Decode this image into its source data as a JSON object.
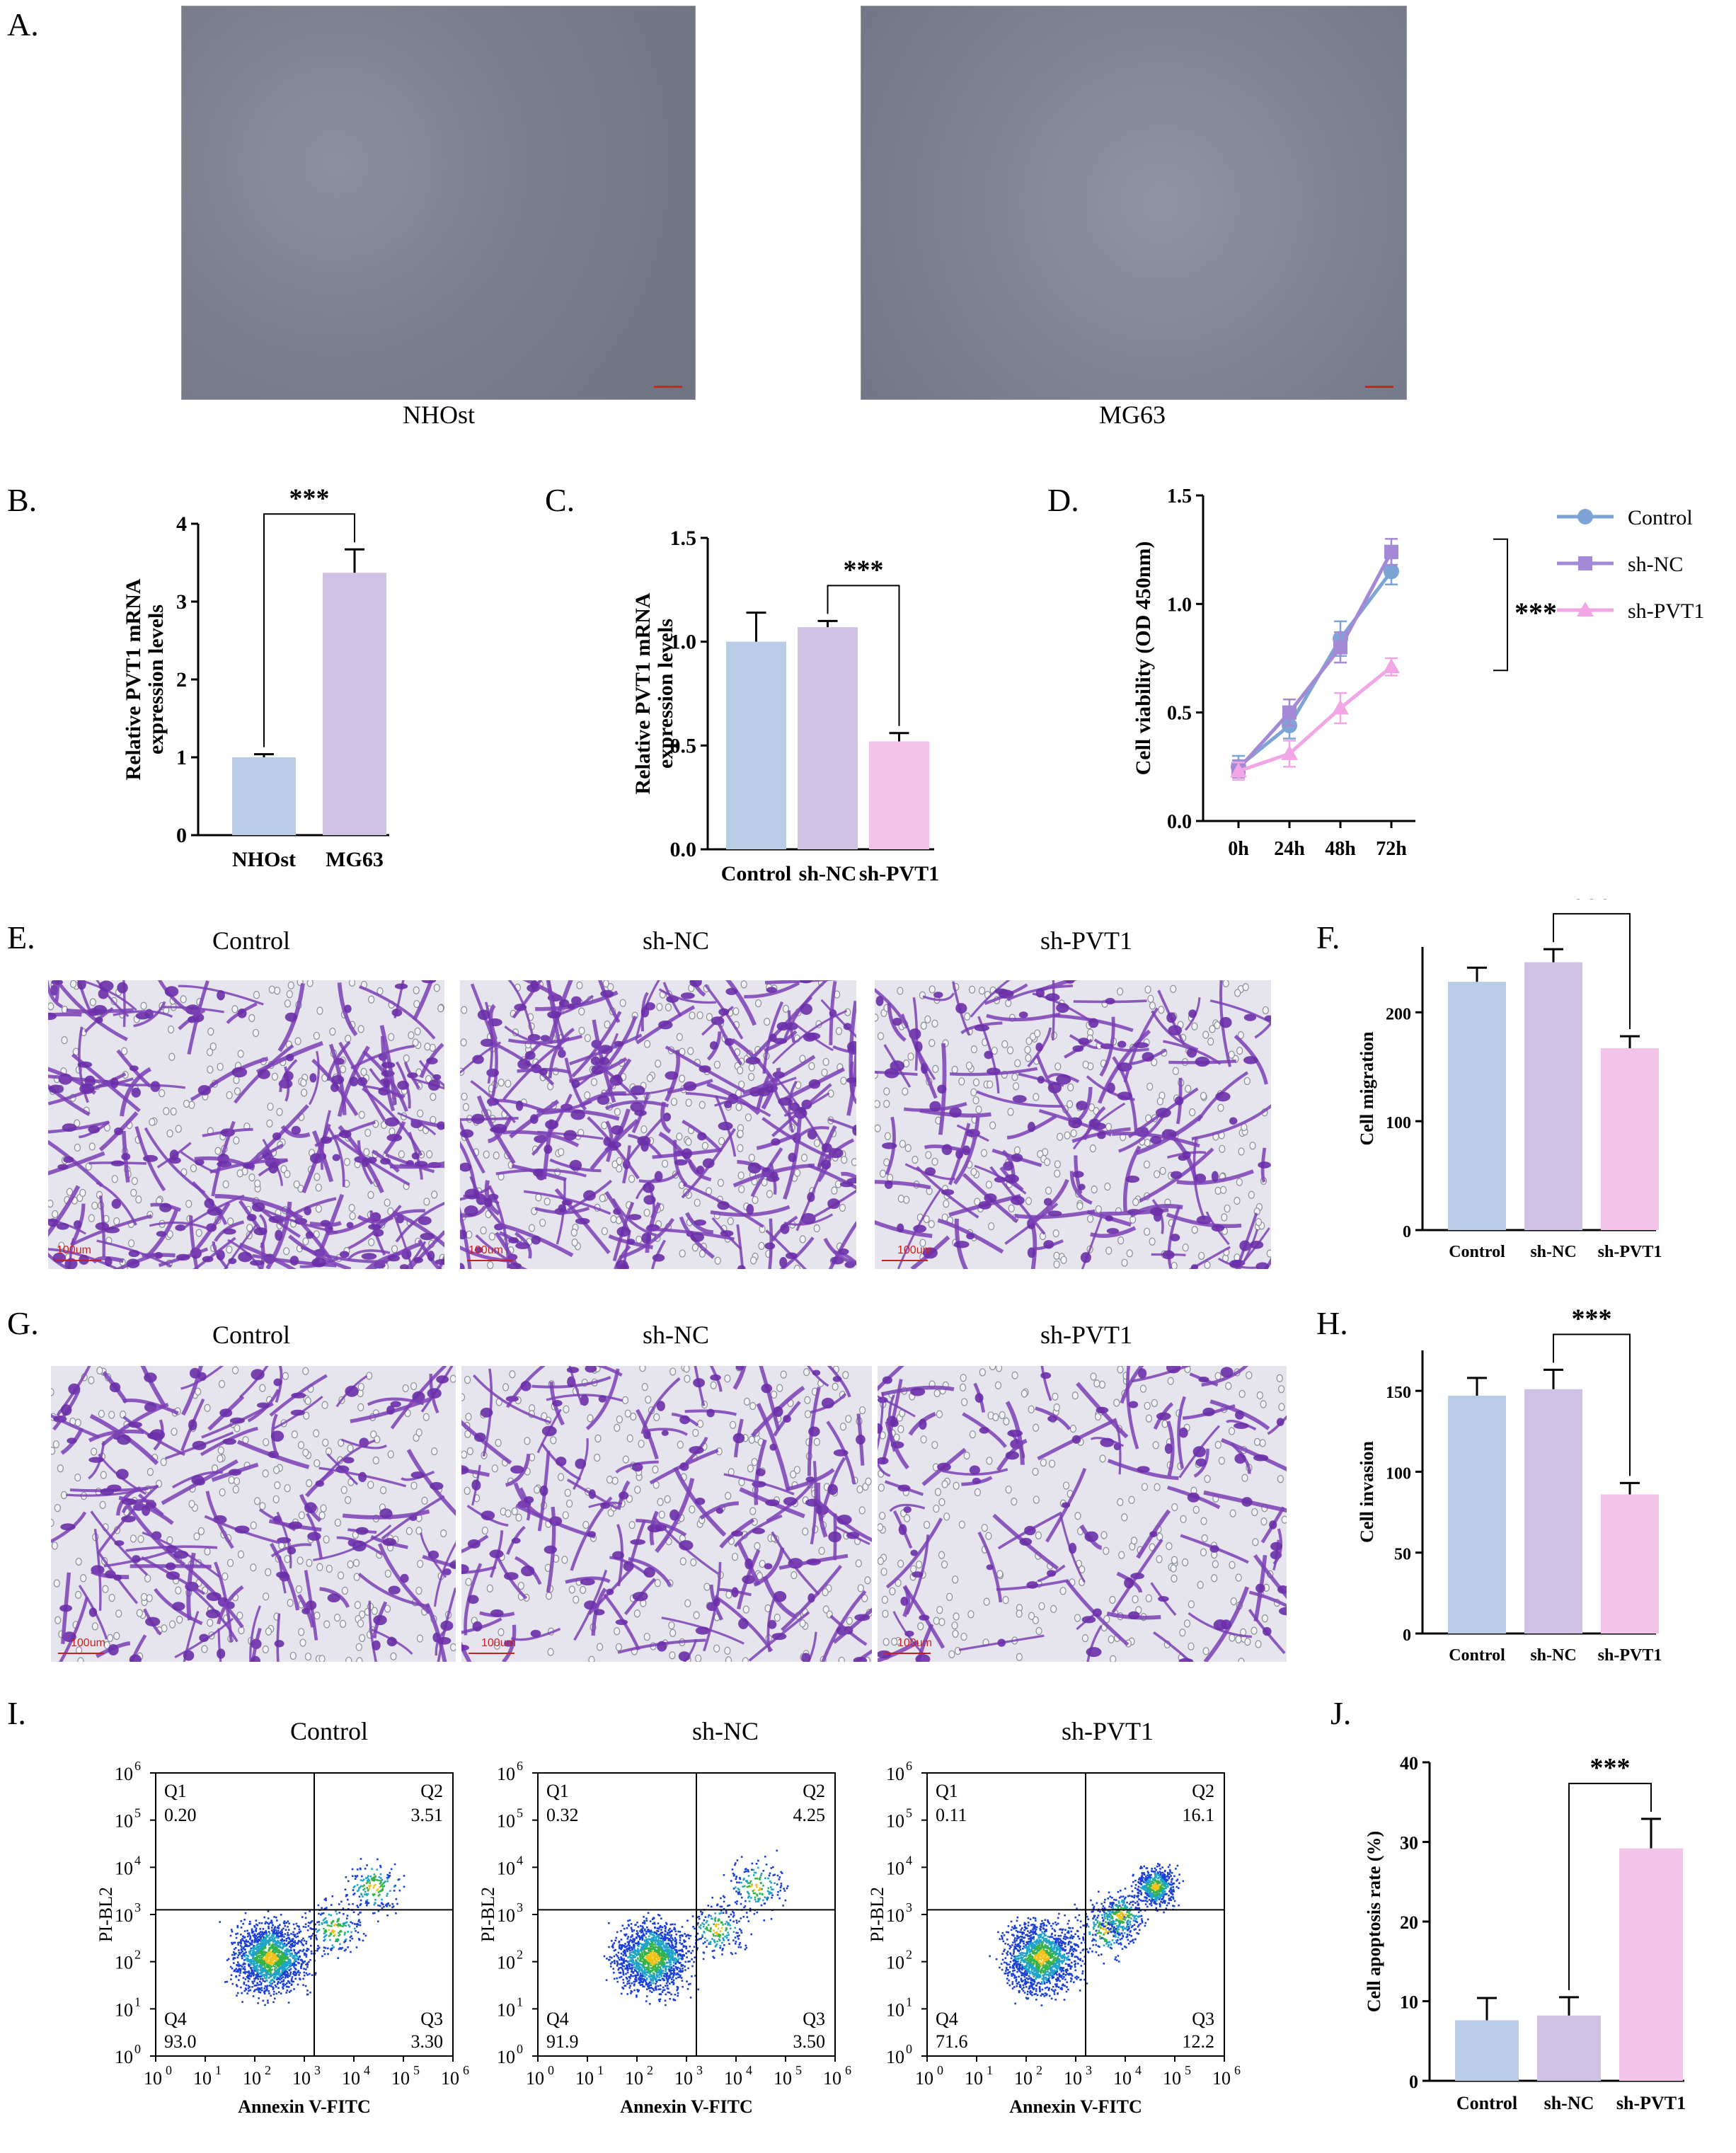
{
  "panels": {
    "A": {
      "letter": "A.",
      "labels": [
        "NHOst",
        "MG63"
      ]
    },
    "B": {
      "letter": "B."
    },
    "C": {
      "letter": "C."
    },
    "D": {
      "letter": "D."
    },
    "E": {
      "letter": "E.",
      "titles": [
        "Control",
        "sh-NC",
        "sh-PVT1"
      ],
      "scalebar": "100um"
    },
    "F": {
      "letter": "F."
    },
    "G": {
      "letter": "G.",
      "titles": [
        "Control",
        "sh-NC",
        "sh-PVT1"
      ],
      "scalebar": "100um"
    },
    "H": {
      "letter": "H."
    },
    "I": {
      "letter": "I.",
      "titles": [
        "Control",
        "sh-NC",
        "sh-PVT1"
      ],
      "xlabel": "Annexin V-FITC",
      "ylabel": "PI-BL2",
      "quadrant_names": [
        "Q1",
        "Q2",
        "Q3",
        "Q4"
      ],
      "plots": [
        {
          "q1": "0.20",
          "q2": "3.51",
          "q3": "3.30",
          "q4": "93.0"
        },
        {
          "q1": "0.32",
          "q2": "4.25",
          "q3": "3.50",
          "q4": "91.9"
        },
        {
          "q1": "0.11",
          "q2": "16.1",
          "q3": "12.2",
          "q4": "71.6"
        }
      ]
    },
    "J": {
      "letter": "J."
    }
  },
  "chart_data": [
    {
      "id": "B",
      "type": "bar",
      "categories": [
        "NHOst",
        "MG63"
      ],
      "values": [
        1.0,
        3.37
      ],
      "errors": [
        0.04,
        0.3
      ],
      "ylabel": "Relative PVT1 mRNA expression levels",
      "ylim": [
        0,
        4
      ],
      "yticks": [
        0,
        1,
        2,
        3,
        4
      ],
      "colors": [
        "#b8cce6",
        "#cfc2e4"
      ],
      "significance": "***"
    },
    {
      "id": "C",
      "type": "bar",
      "categories": [
        "Control",
        "sh-NC",
        "sh-PVT1"
      ],
      "values": [
        1.0,
        1.07,
        0.52
      ],
      "errors": [
        0.14,
        0.03,
        0.04
      ],
      "ylabel": "Relative PVT1 mRNA expression levels",
      "ylim": [
        0,
        1.5
      ],
      "yticks": [
        0.0,
        0.5,
        1.0,
        1.5
      ],
      "colors": [
        "#b8cce6",
        "#cfc2e4",
        "#f3c4ea"
      ],
      "significance": "***"
    },
    {
      "id": "D",
      "type": "line",
      "x": [
        "0h",
        "24h",
        "48h",
        "72h"
      ],
      "ylabel": "Cell viability (OD 450nm)",
      "ylim": [
        0,
        1.5
      ],
      "yticks": [
        0.0,
        0.5,
        1.0,
        1.5
      ],
      "series": [
        {
          "name": "Control",
          "values": [
            0.25,
            0.44,
            0.84,
            1.15
          ],
          "errors": [
            0.05,
            0.06,
            0.08,
            0.06
          ],
          "color": "#7ea4d6",
          "marker": "circle"
        },
        {
          "name": "sh-NC",
          "values": [
            0.24,
            0.5,
            0.8,
            1.24
          ],
          "errors": [
            0.04,
            0.06,
            0.07,
            0.06
          ],
          "color": "#a48ad6",
          "marker": "square"
        },
        {
          "name": "sh-PVT1",
          "values": [
            0.23,
            0.31,
            0.52,
            0.71
          ],
          "errors": [
            0.04,
            0.06,
            0.07,
            0.04
          ],
          "color": "#f2a6e6",
          "marker": "triangle"
        }
      ],
      "legend": "right",
      "significance": "***"
    },
    {
      "id": "F",
      "type": "bar",
      "categories": [
        "Control",
        "sh-NC",
        "sh-PVT1"
      ],
      "values": [
        228,
        246,
        167
      ],
      "errors": [
        13,
        12,
        11
      ],
      "ylabel": "Cell migration",
      "ylim": [
        0,
        260
      ],
      "yticks": [
        0,
        100,
        200
      ],
      "colors": [
        "#b8cce6",
        "#cfc2e4",
        "#f3c4ea"
      ],
      "significance": "***"
    },
    {
      "id": "H",
      "type": "bar",
      "categories": [
        "Control",
        "sh-NC",
        "sh-PVT1"
      ],
      "values": [
        147,
        151,
        86
      ],
      "errors": [
        11,
        12,
        7
      ],
      "ylabel": "Cell invasion",
      "ylim": [
        0,
        175
      ],
      "yticks": [
        0,
        50,
        100,
        150
      ],
      "colors": [
        "#b8cce6",
        "#cfc2e4",
        "#f3c4ea"
      ],
      "significance": "***"
    },
    {
      "id": "J",
      "type": "bar",
      "categories": [
        "Control",
        "sh-NC",
        "sh-PVT1"
      ],
      "values": [
        7.6,
        8.2,
        29.2
      ],
      "errors": [
        2.8,
        2.3,
        3.7
      ],
      "ylabel": "Cell apoptosis rate (%)",
      "ylim": [
        0,
        40
      ],
      "yticks": [
        0,
        10,
        20,
        30,
        40
      ],
      "colors": [
        "#b8cce6",
        "#cfc2e4",
        "#f3c4ea"
      ],
      "significance": "***"
    }
  ]
}
